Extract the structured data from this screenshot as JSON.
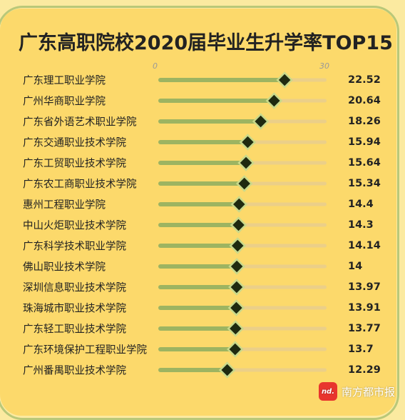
{
  "chart_data": {
    "type": "bar",
    "title": "广东高职院校2020届毕业生升学率TOP15",
    "xlim": [
      0,
      30
    ],
    "ticks": [
      "0",
      "30"
    ],
    "categories": [
      "广东理工职业学院",
      "广州华商职业学院",
      "广东省外语艺术职业学院",
      "广东交通职业技术学院",
      "广东工贸职业技术学院",
      "广东农工商职业技术学院",
      "惠州工程职业学院",
      "中山火炬职业技术学院",
      "广东科学技术职业学院",
      "佛山职业技术学院",
      "深圳信息职业技术学院",
      "珠海城市职业技术学院",
      "广东轻工职业技术学院",
      "广东环境保护工程职业学院",
      "广州番禺职业技术学院"
    ],
    "values": [
      22.52,
      20.64,
      18.26,
      15.94,
      15.64,
      15.34,
      14.4,
      14.3,
      14.14,
      14,
      13.97,
      13.91,
      13.77,
      13.7,
      12.29
    ],
    "value_labels": [
      "22.52",
      "20.64",
      "18.26",
      "15.94",
      "15.64",
      "15.34",
      "14.4",
      "14.3",
      "14.14",
      "14",
      "13.97",
      "13.91",
      "13.77",
      "13.7",
      "12.29"
    ],
    "colors": {
      "bar": "#9db461",
      "track": "#ebcf88",
      "marker": "#1f2a10",
      "marker_outline": "#c9d98a"
    }
  },
  "watermark": {
    "logo_text": "nd.",
    "text": "南方都市报"
  }
}
